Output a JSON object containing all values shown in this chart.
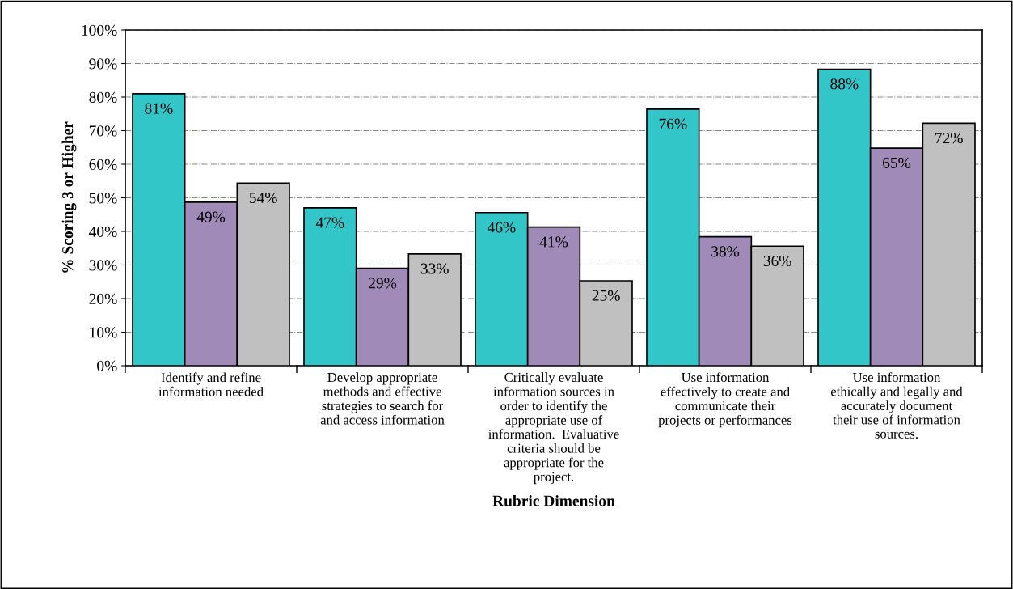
{
  "chart_data": {
    "type": "bar",
    "xlabel": "Rubric Dimension",
    "ylabel": "% Scoring 3 or Higher",
    "categories": [
      "Identify and refine\ninformation needed",
      "Develop appropriate\nmethods and effective\nstrategies to search for\nand access information",
      "Critically evaluate\ninformation sources in\norder to identify the\nappropriate use of\ninformation.  Evaluative\ncriteria should be\nappropriate for the\nproject.",
      "Use information\neffectively to create and\ncommunicate their\nprojects or performances",
      "Use information\nethically and legally and\naccurately document\ntheir use of information\nsources."
    ],
    "series": [
      {
        "color": "#33c6c9",
        "values": [
          81,
          47,
          45.6,
          76.4,
          88.3
        ],
        "value_labels": [
          "81%",
          "47%",
          "46%",
          "76%",
          "88%"
        ]
      },
      {
        "color": "#a08ab8",
        "values": [
          48.7,
          29,
          41.3,
          38.4,
          64.8
        ],
        "value_labels": [
          "49%",
          "29%",
          "41%",
          "38%",
          "65%"
        ]
      },
      {
        "color": "#c0c0c0",
        "values": [
          54.4,
          33.3,
          25.3,
          35.6,
          72.2
        ],
        "value_labels": [
          "54%",
          "33%",
          "25%",
          "36%",
          "72%"
        ]
      }
    ],
    "ylim": [
      0,
      100
    ],
    "yticks": [
      {
        "value": 0,
        "label": "0%"
      },
      {
        "value": 10,
        "label": "10%"
      },
      {
        "value": 20,
        "label": "20%"
      },
      {
        "value": 30,
        "label": "30%"
      },
      {
        "value": 40,
        "label": "40%"
      },
      {
        "value": 50,
        "label": "50%"
      },
      {
        "value": 60,
        "label": "60%"
      },
      {
        "value": 70,
        "label": "70%"
      },
      {
        "value": 80,
        "label": "80%"
      },
      {
        "value": 90,
        "label": "90%"
      },
      {
        "value": 100,
        "label": "100%"
      }
    ],
    "grid": "y",
    "legend": false
  }
}
